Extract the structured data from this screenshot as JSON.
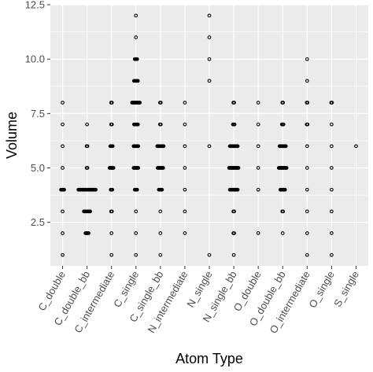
{
  "chart_data": {
    "type": "scatter",
    "xlabel": "Atom Type",
    "ylabel": "Volume",
    "categories": [
      "C_double",
      "C_double_bb",
      "C_intermediate",
      "C_single",
      "C_single_bb",
      "N_intermediate",
      "N_single",
      "N_single_bb",
      "O_double",
      "O_double_bb",
      "O_intermediate",
      "O_single",
      "S_single"
    ],
    "ylim": [
      0.5,
      12.5
    ],
    "yticks": [
      2.5,
      5.0,
      7.5,
      10.0,
      12.5
    ],
    "ytick_labels": [
      "2.5",
      "5.0",
      "7.5",
      "10.0",
      "12.5"
    ],
    "grid": true,
    "background": "#ebebeb",
    "point_color": "#000000",
    "groups": [
      {
        "category": "C_double",
        "strips": [
          {
            "y": 4,
            "n": 5
          }
        ],
        "points": [
          1,
          2,
          3,
          5,
          6,
          7,
          8
        ]
      },
      {
        "category": "C_double_bb",
        "strips": [
          {
            "y": 2,
            "n": 5
          },
          {
            "y": 3,
            "n": 9
          },
          {
            "y": 4,
            "n": 23
          },
          {
            "y": 5,
            "n": 2
          },
          {
            "y": 6,
            "n": 2
          }
        ],
        "points": [
          7
        ]
      },
      {
        "category": "C_intermediate",
        "strips": [
          {
            "y": 3,
            "n": 2
          },
          {
            "y": 4,
            "n": 3
          },
          {
            "y": 5,
            "n": 6
          },
          {
            "y": 6,
            "n": 4
          },
          {
            "y": 7,
            "n": 2
          },
          {
            "y": 8,
            "n": 2
          }
        ],
        "points": [
          1,
          2
        ]
      },
      {
        "category": "C_single",
        "strips": [
          {
            "y": 4,
            "n": 4
          },
          {
            "y": 5,
            "n": 7
          },
          {
            "y": 6,
            "n": 7
          },
          {
            "y": 7,
            "n": 6
          },
          {
            "y": 8,
            "n": 11
          },
          {
            "y": 9,
            "n": 6
          },
          {
            "y": 10,
            "n": 4
          }
        ],
        "points": [
          1,
          2,
          3,
          11,
          12
        ]
      },
      {
        "category": "C_single_bb",
        "strips": [
          {
            "y": 4,
            "n": 5
          },
          {
            "y": 5,
            "n": 8
          },
          {
            "y": 6,
            "n": 9
          },
          {
            "y": 7,
            "n": 2
          },
          {
            "y": 8,
            "n": 2
          }
        ],
        "points": [
          1,
          2,
          3
        ]
      },
      {
        "category": "N_intermediate",
        "strips": [],
        "points": [
          2,
          3,
          4,
          5,
          6,
          7,
          8
        ]
      },
      {
        "category": "N_single",
        "strips": [],
        "points": [
          1,
          6,
          9,
          10,
          11,
          12
        ]
      },
      {
        "category": "N_single_bb",
        "strips": [
          {
            "y": 2,
            "n": 2
          },
          {
            "y": 3,
            "n": 2
          },
          {
            "y": 4,
            "n": 11
          },
          {
            "y": 5,
            "n": 13
          },
          {
            "y": 6,
            "n": 11
          },
          {
            "y": 7,
            "n": 3
          },
          {
            "y": 8,
            "n": 2
          }
        ],
        "points": [
          1
        ]
      },
      {
        "category": "O_double",
        "strips": [],
        "points": [
          2,
          4,
          5,
          6,
          7,
          8
        ]
      },
      {
        "category": "O_double_bb",
        "strips": [
          {
            "y": 3,
            "n": 2
          },
          {
            "y": 4,
            "n": 7
          },
          {
            "y": 5,
            "n": 11
          },
          {
            "y": 6,
            "n": 9
          },
          {
            "y": 7,
            "n": 3
          },
          {
            "y": 8,
            "n": 2
          }
        ],
        "points": [
          2
        ]
      },
      {
        "category": "O_intermediate",
        "strips": [
          {
            "y": 7,
            "n": 2
          },
          {
            "y": 8,
            "n": 2
          }
        ],
        "points": [
          1,
          2,
          3,
          4,
          5,
          6,
          9,
          10
        ]
      },
      {
        "category": "O_single",
        "strips": [
          {
            "y": 8,
            "n": 2
          }
        ],
        "points": [
          1,
          2,
          3,
          4,
          5,
          6,
          7
        ]
      },
      {
        "category": "S_single",
        "strips": [],
        "points": [
          6
        ]
      }
    ]
  }
}
